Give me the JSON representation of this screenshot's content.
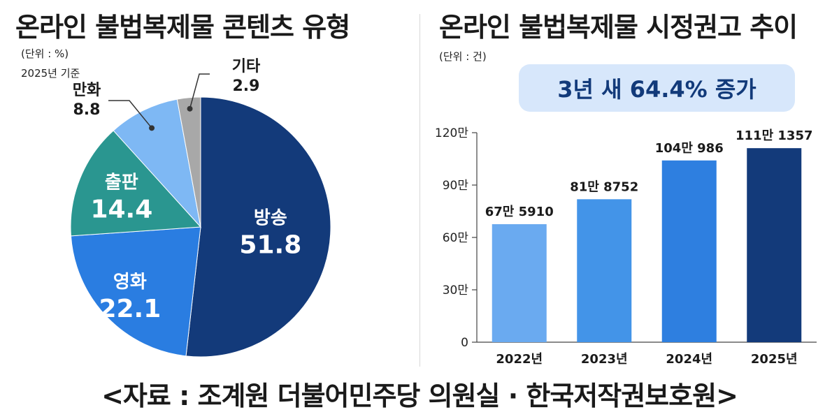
{
  "left": {
    "title": "온라인 불법복제물 콘텐츠 유형",
    "unit": "(단위 : %)",
    "basis": "2025년 기준"
  },
  "right": {
    "title": "온라인 불법복제물 시정권고 추이",
    "unit": "(단위 : 건)",
    "highlight": "3년 새 64.4% 증가"
  },
  "source": "<자료 : 조계원 더불어민주당 의원실 · 한국저작권보호원>",
  "chart_data": [
    {
      "type": "pie",
      "title": "온라인 불법복제물 콘텐츠 유형",
      "subtitle": "(단위 : %) 2025년 기준",
      "slices": [
        {
          "label": "방송",
          "display": "51.8",
          "value": 51.8,
          "color": "#133a7a"
        },
        {
          "label": "영화",
          "display": "22.1",
          "value": 22.1,
          "color": "#2a7de1"
        },
        {
          "label": "출판",
          "display": "14.4",
          "value": 14.4,
          "color": "#2a9690"
        },
        {
          "label": "만화",
          "display": "8.8",
          "value": 8.8,
          "color": "#7eb8f4"
        },
        {
          "label": "기타",
          "display": "2.9",
          "value": 2.9,
          "color": "#a8a8a8"
        }
      ]
    },
    {
      "type": "bar",
      "title": "온라인 불법복제물 시정권고 추이",
      "subtitle": "(단위 : 건)",
      "categories": [
        "2022년",
        "2023년",
        "2024년",
        "2025년"
      ],
      "values": [
        675910,
        818752,
        1040986,
        1111357
      ],
      "value_labels": [
        "67만 5910",
        "81만 8752",
        "104만 986",
        "111만 1357"
      ],
      "colors": [
        "#6aaaf0",
        "#4394e8",
        "#2e7fe0",
        "#133a7a"
      ],
      "yticks": [
        0,
        300000,
        600000,
        900000,
        1200000
      ],
      "ytick_labels": [
        "0",
        "30만",
        "60만",
        "90만",
        "120만"
      ],
      "ylim": [
        0,
        1200000
      ]
    }
  ]
}
